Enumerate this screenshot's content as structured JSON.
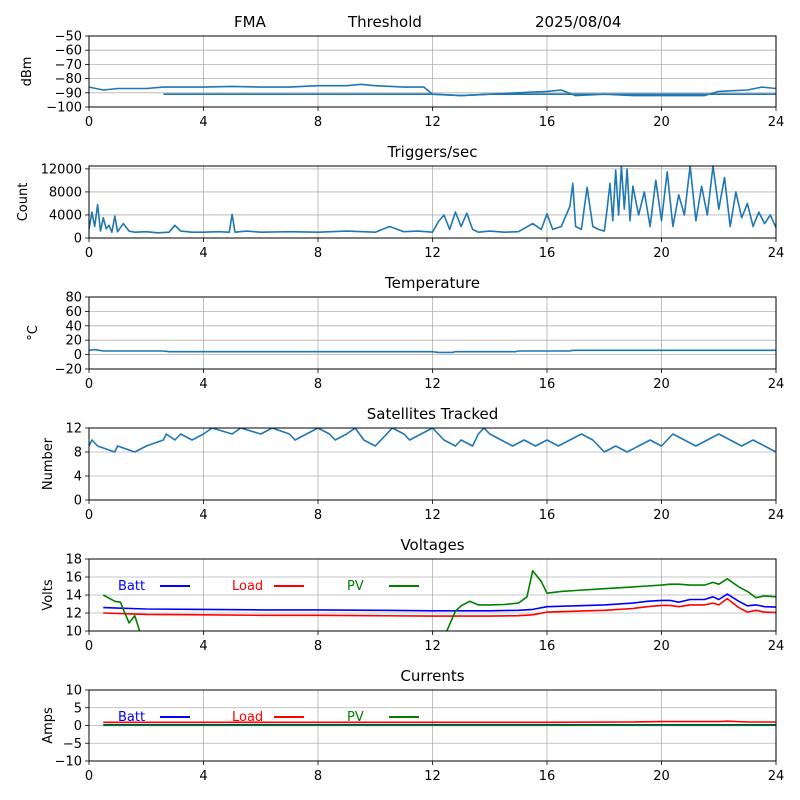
{
  "header": {
    "station": "FMA",
    "label": "Threshold",
    "date": "2025/08/04"
  },
  "colors": {
    "series": "#1f77b4",
    "batt": "#0000ff",
    "load": "#ff0000",
    "pv": "#008000",
    "grid": "#b0b0b0"
  },
  "chart_data": [
    {
      "type": "line",
      "title": "",
      "ylabel": "dBm",
      "xlim": [
        0,
        24
      ],
      "ylim": [
        -100,
        -50
      ],
      "xticks": [
        0,
        4,
        8,
        12,
        16,
        20,
        24
      ],
      "yticks": [
        -100,
        -90,
        -80,
        -70,
        -60,
        -50
      ],
      "grid": true,
      "series": [
        {
          "x": [
            0,
            0.5,
            1,
            2,
            2.6,
            3,
            4,
            5,
            6,
            7,
            8,
            9,
            9.5,
            10,
            11,
            11.7,
            12,
            13,
            14,
            15,
            16,
            16.5,
            17,
            18,
            19,
            20,
            21,
            21.5,
            22,
            23,
            23.5,
            24
          ],
          "y": [
            -86,
            -88,
            -87,
            -87,
            -86,
            -86,
            -86,
            -85.5,
            -86,
            -86,
            -85,
            -85,
            -84,
            -85,
            -86,
            -86,
            -91,
            -92,
            -91,
            -90,
            -89,
            -88,
            -92,
            -91,
            -92,
            -92,
            -92,
            -92,
            -89,
            -88,
            -86,
            -87
          ]
        },
        {
          "x": [
            2.6,
            12,
            13,
            14,
            15,
            15.5,
            16,
            24
          ],
          "y": [
            -91,
            -91,
            -92,
            -91,
            -91,
            -91,
            -91,
            -91
          ]
        }
      ]
    },
    {
      "type": "line",
      "title": "Triggers/sec",
      "ylabel": "Count",
      "xlim": [
        0,
        24
      ],
      "ylim": [
        0,
        12500
      ],
      "xticks": [
        0,
        4,
        8,
        12,
        16,
        20,
        24
      ],
      "yticks": [
        0,
        4000,
        8000,
        12000
      ],
      "grid": true,
      "series": [
        {
          "x": [
            0,
            0.1,
            0.2,
            0.3,
            0.4,
            0.5,
            0.6,
            0.7,
            0.8,
            0.9,
            1.0,
            1.2,
            1.4,
            1.6,
            2.0,
            2.4,
            2.8,
            3.0,
            3.2,
            3.6,
            4.0,
            4.5,
            4.9,
            5.0,
            5.1,
            5.5,
            6,
            7,
            8,
            9,
            10,
            10.5,
            11,
            11.5,
            12,
            12.2,
            12.4,
            12.6,
            12.8,
            13.0,
            13.2,
            13.4,
            13.6,
            14,
            14.5,
            15,
            15.5,
            15.8,
            16,
            16.2,
            16.5,
            16.8,
            16.9,
            17.0,
            17.2,
            17.4,
            17.6,
            17.8,
            18.0,
            18.1,
            18.2,
            18.3,
            18.4,
            18.5,
            18.6,
            18.7,
            18.8,
            18.9,
            19.0,
            19.2,
            19.4,
            19.6,
            19.8,
            20.0,
            20.2,
            20.4,
            20.6,
            20.8,
            21.0,
            21.2,
            21.4,
            21.6,
            21.8,
            22.0,
            22.2,
            22.4,
            22.6,
            22.8,
            23.0,
            23.2,
            23.4,
            23.6,
            23.8,
            24.0
          ],
          "y": [
            1500,
            4500,
            2000,
            5800,
            1200,
            3500,
            1600,
            2200,
            1000,
            3800,
            1100,
            2500,
            1200,
            1000,
            1100,
            900,
            1000,
            2200,
            1200,
            1000,
            1000,
            1100,
            1000,
            4100,
            1000,
            1200,
            1000,
            1100,
            1000,
            1200,
            1000,
            2000,
            1100,
            1200,
            1000,
            2800,
            4000,
            1500,
            4500,
            2000,
            4300,
            1500,
            1000,
            1200,
            1000,
            1100,
            2500,
            1500,
            4200,
            1500,
            2000,
            5500,
            9500,
            2000,
            1500,
            8800,
            2000,
            1500,
            1200,
            5000,
            9500,
            3000,
            11800,
            4000,
            12500,
            5000,
            12000,
            3000,
            9000,
            4000,
            8000,
            2000,
            10000,
            3000,
            11500,
            2000,
            7500,
            4000,
            12500,
            3000,
            9000,
            4000,
            12500,
            5000,
            10500,
            2000,
            8000,
            3500,
            6000,
            2000,
            4500,
            2500,
            4000,
            1800
          ]
        }
      ]
    },
    {
      "type": "line",
      "title": "Temperature",
      "ylabel": "°C",
      "xlim": [
        0,
        24
      ],
      "ylim": [
        -20,
        80
      ],
      "xticks": [
        0,
        4,
        8,
        12,
        16,
        20,
        24
      ],
      "yticks": [
        -20,
        0,
        20,
        40,
        60,
        80
      ],
      "grid": true,
      "series": [
        {
          "x": [
            0,
            0.2,
            0.5,
            2.6,
            2.8,
            12,
            12.2,
            12.7,
            12.8,
            14.9,
            15,
            16.8,
            16.9,
            24
          ],
          "y": [
            6,
            7,
            5,
            5,
            4,
            4,
            3,
            3,
            4,
            4,
            5,
            5,
            6,
            6
          ]
        }
      ]
    },
    {
      "type": "line",
      "title": "Satellites Tracked",
      "ylabel": "Number",
      "xlim": [
        0,
        24
      ],
      "ylim": [
        0,
        12
      ],
      "xticks": [
        0,
        4,
        8,
        12,
        16,
        20,
        24
      ],
      "yticks": [
        0,
        4,
        8,
        12
      ],
      "grid": true,
      "series": [
        {
          "x": [
            0,
            0.1,
            0.3,
            0.9,
            1.0,
            1.6,
            2.0,
            2.6,
            2.7,
            3.0,
            3.2,
            3.6,
            4.0,
            4.3,
            5.0,
            5.3,
            6.0,
            6.4,
            7.0,
            7.2,
            7.6,
            8.0,
            8.4,
            8.6,
            9.0,
            9.3,
            9.6,
            10.0,
            10.4,
            10.6,
            11.0,
            11.2,
            11.6,
            12.0,
            12.4,
            12.8,
            13.0,
            13.4,
            13.6,
            13.8,
            14.0,
            14.4,
            14.8,
            15.2,
            15.6,
            16.0,
            16.4,
            16.8,
            17.2,
            17.6,
            18.0,
            18.4,
            18.8,
            19.2,
            19.6,
            20.0,
            20.4,
            20.8,
            21.2,
            21.6,
            22.0,
            22.4,
            22.8,
            23.2,
            23.6,
            24.0
          ],
          "y": [
            9,
            10,
            9,
            8,
            9,
            8,
            9,
            10,
            11,
            10,
            11,
            10,
            11,
            12,
            11,
            12,
            11,
            12,
            11,
            10,
            11,
            12,
            11,
            10,
            11,
            12,
            10,
            9,
            11,
            12,
            11,
            10,
            11,
            12,
            10,
            9,
            10,
            9,
            11,
            12,
            11,
            10,
            9,
            10,
            9,
            10,
            9,
            10,
            11,
            10,
            8,
            9,
            8,
            9,
            10,
            9,
            11,
            10,
            9,
            10,
            11,
            10,
            9,
            10,
            9,
            8
          ]
        }
      ]
    },
    {
      "type": "line",
      "title": "Voltages",
      "ylabel": "Volts",
      "xlim": [
        0,
        24
      ],
      "ylim": [
        10,
        18
      ],
      "xticks": [
        0,
        4,
        8,
        12,
        16,
        20,
        24
      ],
      "yticks": [
        10,
        12,
        14,
        16,
        18
      ],
      "grid": true,
      "legend": [
        "Batt",
        "Load",
        "PV"
      ],
      "series": [
        {
          "name": "Batt",
          "x": [
            0.5,
            2,
            4,
            6,
            8,
            10,
            12,
            14,
            15,
            15.5,
            16,
            17,
            18,
            19,
            19.5,
            20,
            20.3,
            20.6,
            21,
            21.5,
            21.8,
            22,
            22.3,
            22.7,
            23,
            23.3,
            23.6,
            24
          ],
          "y": [
            12.6,
            12.45,
            12.4,
            12.35,
            12.35,
            12.3,
            12.25,
            12.25,
            12.3,
            12.4,
            12.7,
            12.8,
            12.9,
            13.1,
            13.3,
            13.4,
            13.4,
            13.2,
            13.5,
            13.5,
            13.8,
            13.5,
            14.1,
            13.3,
            12.8,
            12.9,
            12.7,
            12.65
          ]
        },
        {
          "name": "Load",
          "x": [
            0.5,
            2,
            4,
            6,
            8,
            10,
            12,
            14,
            15,
            15.5,
            16,
            17,
            18,
            19,
            19.5,
            20,
            20.3,
            20.6,
            21,
            21.5,
            21.8,
            22,
            22.3,
            22.7,
            23,
            23.3,
            23.6,
            24
          ],
          "y": [
            12.0,
            11.85,
            11.8,
            11.75,
            11.75,
            11.7,
            11.65,
            11.65,
            11.7,
            11.8,
            12.1,
            12.2,
            12.3,
            12.5,
            12.7,
            12.85,
            12.85,
            12.7,
            12.9,
            12.9,
            13.1,
            12.9,
            13.6,
            12.6,
            12.1,
            12.3,
            12.1,
            12.05
          ]
        },
        {
          "name": "PV",
          "x": [
            0.5,
            0.9,
            1.1,
            1.2,
            1.4,
            1.6,
            1.8,
            12.5,
            12.8,
            13.0,
            13.3,
            13.6,
            14,
            14.5,
            15,
            15.3,
            15.5,
            15.8,
            16,
            16.5,
            17,
            18,
            19,
            19.5,
            20,
            20.3,
            20.6,
            21,
            21.5,
            21.8,
            22,
            22.3,
            22.7,
            23,
            23.3,
            23.6,
            24
          ],
          "y": [
            14.0,
            13.3,
            13.2,
            12.4,
            10.9,
            11.7,
            9.7,
            10.0,
            12.2,
            12.8,
            13.3,
            12.9,
            12.9,
            12.95,
            13.1,
            13.8,
            16.7,
            15.5,
            14.2,
            14.4,
            14.5,
            14.7,
            14.9,
            15.0,
            15.1,
            15.2,
            15.2,
            15.1,
            15.1,
            15.4,
            15.2,
            15.8,
            14.9,
            14.4,
            13.7,
            13.9,
            13.8
          ]
        }
      ]
    },
    {
      "type": "line",
      "title": "Currents",
      "ylabel": "Amps",
      "xlim": [
        0,
        24
      ],
      "ylim": [
        -10,
        10
      ],
      "xticks": [
        0,
        4,
        8,
        12,
        16,
        20,
        24
      ],
      "yticks": [
        -10,
        -5,
        0,
        5,
        10
      ],
      "grid": true,
      "legend": [
        "Batt",
        "Load",
        "PV"
      ],
      "series": [
        {
          "name": "Batt",
          "x": [
            0.5,
            24
          ],
          "y": [
            0.2,
            0.2
          ]
        },
        {
          "name": "Load",
          "x": [
            0.5,
            4,
            8,
            12,
            16,
            19,
            20,
            21,
            22,
            22.3,
            23,
            24
          ],
          "y": [
            0.9,
            0.9,
            0.9,
            0.9,
            0.9,
            1.0,
            1.1,
            1.1,
            1.1,
            1.2,
            1.0,
            1.0
          ]
        },
        {
          "name": "PV",
          "x": [
            0.5,
            24
          ],
          "y": [
            0.05,
            0.05
          ]
        }
      ]
    }
  ]
}
